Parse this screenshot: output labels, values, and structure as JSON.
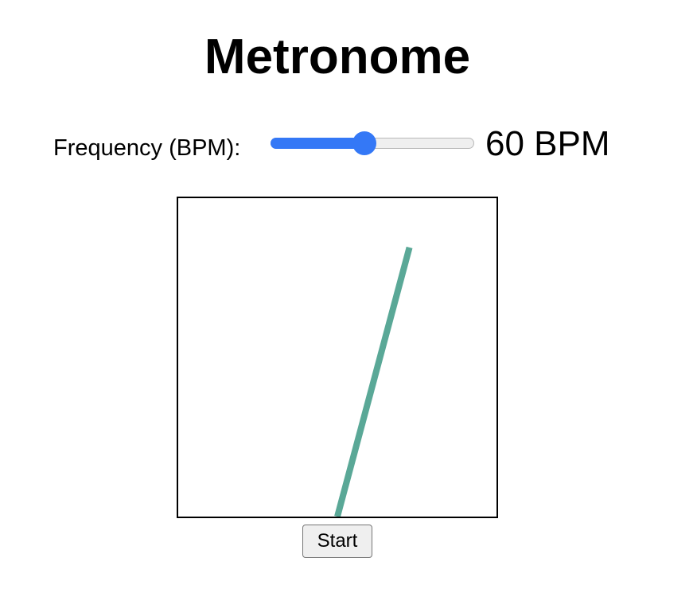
{
  "header": {
    "title": "Metronome"
  },
  "controls": {
    "frequency_label": "Frequency (BPM):",
    "bpm_slider": {
      "value": 60,
      "min": 0,
      "max": 130,
      "fill_fraction": 0.46
    },
    "bpm_readout": "60 BPM"
  },
  "pendulum": {
    "color": "#5aa897",
    "angle_deg": 15
  },
  "actions": {
    "start_label": "Start"
  },
  "colors": {
    "accent": "#3478f6",
    "pendulum": "#5aa897"
  }
}
